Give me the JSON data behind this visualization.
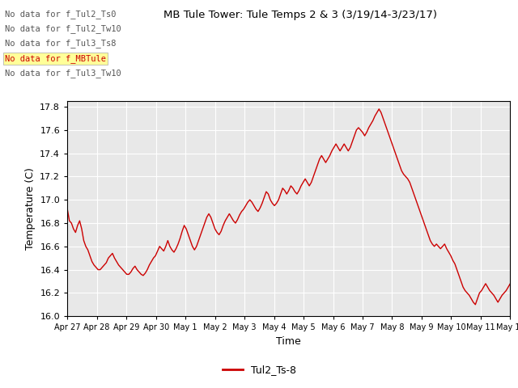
{
  "title": "MB Tule Tower: Tule Temps 2 & 3 (3/19/14-3/23/17)",
  "xlabel": "Time",
  "ylabel": "Temperature (C)",
  "ylim": [
    16.0,
    17.85
  ],
  "yticks": [
    16.0,
    16.2,
    16.4,
    16.6,
    16.8,
    17.0,
    17.2,
    17.4,
    17.6,
    17.8
  ],
  "line_color": "#cc0000",
  "line_width": 1.0,
  "background_color": "#ffffff",
  "plot_bg_color": "#e8e8e8",
  "grid_color": "#ffffff",
  "no_data_labels": [
    "No data for f_Tul2_Ts0",
    "No data for f_Tul2_Tw10",
    "No data for f_Tul3_Ts8",
    "No data for f_MBTule",
    "No data for f_Tul3_Tw10"
  ],
  "highlight_row": 3,
  "legend_label": "Tul2_Ts-8",
  "xtick_labels": [
    "Apr 27",
    "Apr 28",
    "Apr 29",
    "Apr 30",
    "May 1",
    "May 2",
    "May 3",
    "May 4",
    "May 5",
    "May 6",
    "May 7",
    "May 8",
    "May 9",
    "May 10",
    "May 11",
    "May 12"
  ],
  "y_data": [
    16.92,
    16.82,
    16.8,
    16.75,
    16.72,
    16.78,
    16.82,
    16.75,
    16.65,
    16.6,
    16.57,
    16.52,
    16.47,
    16.44,
    16.42,
    16.4,
    16.4,
    16.42,
    16.44,
    16.46,
    16.5,
    16.52,
    16.54,
    16.5,
    16.47,
    16.44,
    16.42,
    16.4,
    16.38,
    16.36,
    16.36,
    16.38,
    16.41,
    16.43,
    16.4,
    16.38,
    16.36,
    16.35,
    16.37,
    16.4,
    16.44,
    16.47,
    16.5,
    16.52,
    16.56,
    16.6,
    16.58,
    16.56,
    16.6,
    16.65,
    16.6,
    16.57,
    16.55,
    16.58,
    16.62,
    16.67,
    16.73,
    16.78,
    16.75,
    16.7,
    16.65,
    16.6,
    16.57,
    16.6,
    16.65,
    16.7,
    16.75,
    16.8,
    16.85,
    16.88,
    16.85,
    16.8,
    16.75,
    16.72,
    16.7,
    16.73,
    16.78,
    16.82,
    16.85,
    16.88,
    16.85,
    16.82,
    16.8,
    16.83,
    16.87,
    16.9,
    16.92,
    16.95,
    16.98,
    17.0,
    16.98,
    16.95,
    16.92,
    16.9,
    16.93,
    16.97,
    17.02,
    17.07,
    17.05,
    17.0,
    16.97,
    16.95,
    16.97,
    17.0,
    17.05,
    17.1,
    17.08,
    17.05,
    17.08,
    17.12,
    17.1,
    17.07,
    17.05,
    17.08,
    17.12,
    17.15,
    17.18,
    17.15,
    17.12,
    17.15,
    17.2,
    17.25,
    17.3,
    17.35,
    17.38,
    17.35,
    17.32,
    17.35,
    17.38,
    17.42,
    17.45,
    17.48,
    17.45,
    17.42,
    17.45,
    17.48,
    17.45,
    17.42,
    17.45,
    17.5,
    17.55,
    17.6,
    17.62,
    17.6,
    17.58,
    17.55,
    17.58,
    17.62,
    17.65,
    17.68,
    17.72,
    17.75,
    17.78,
    17.75,
    17.7,
    17.65,
    17.6,
    17.55,
    17.5,
    17.45,
    17.4,
    17.35,
    17.3,
    17.25,
    17.22,
    17.2,
    17.18,
    17.15,
    17.1,
    17.05,
    17.0,
    16.95,
    16.9,
    16.85,
    16.8,
    16.75,
    16.7,
    16.65,
    16.62,
    16.6,
    16.62,
    16.6,
    16.58,
    16.6,
    16.62,
    16.58,
    16.55,
    16.52,
    16.48,
    16.45,
    16.4,
    16.35,
    16.3,
    16.25,
    16.22,
    16.2,
    16.18,
    16.15,
    16.12,
    16.1,
    16.15,
    16.2,
    16.22,
    16.25,
    16.28,
    16.25,
    16.22,
    16.2,
    16.18,
    16.15,
    16.12,
    16.15,
    16.18,
    16.2,
    16.22,
    16.25,
    16.28
  ]
}
